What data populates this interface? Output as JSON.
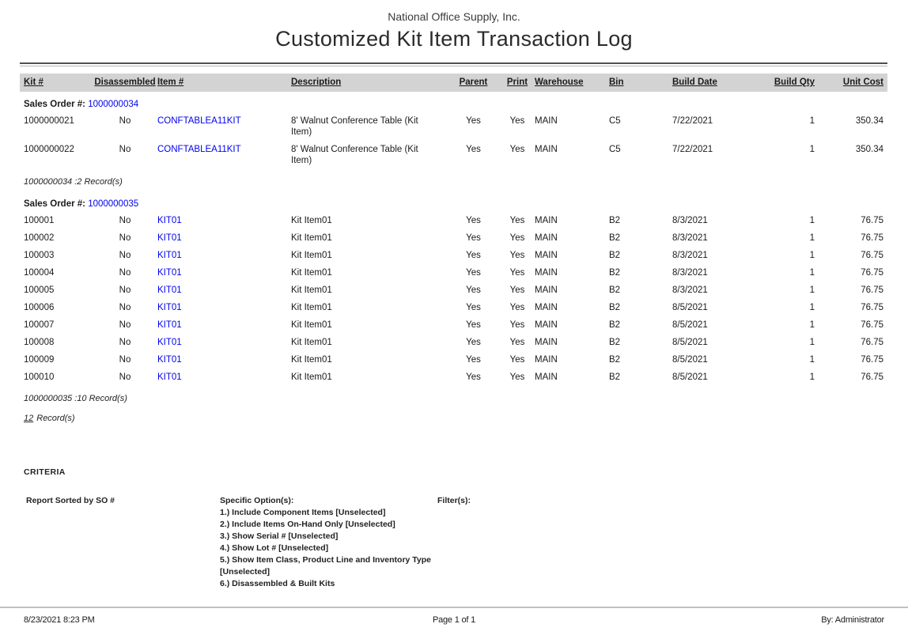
{
  "header": {
    "company": "National Office Supply, Inc.",
    "title": "Customized Kit Item Transaction Log"
  },
  "table": {
    "columns": [
      "Kit #",
      "Disassembled",
      "Item #",
      "Description",
      "Parent",
      "Print",
      "Warehouse",
      "Bin",
      "Build Date",
      "Build Qty",
      "Unit Cost"
    ],
    "groups": [
      {
        "sales_order_label": "Sales Order #:",
        "sales_order_number": "1000000034",
        "rows": [
          {
            "kit": "1000000021",
            "disassembled": "No",
            "item": "CONFTABLEA11KIT",
            "description": "8' Walnut Conference Table (Kit Item)",
            "parent": "Yes",
            "print": "Yes",
            "warehouse": "MAIN",
            "bin": "C5",
            "build_date": "7/22/2021",
            "build_qty": "1",
            "unit_cost": "350.34"
          },
          {
            "kit": "1000000022",
            "disassembled": "No",
            "item": "CONFTABLEA11KIT",
            "description": "8' Walnut Conference Table (Kit Item)",
            "parent": "Yes",
            "print": "Yes",
            "warehouse": "MAIN",
            "bin": "C5",
            "build_date": "7/22/2021",
            "build_qty": "1",
            "unit_cost": "350.34"
          }
        ],
        "summary": "1000000034 :2 Record(s)"
      },
      {
        "sales_order_label": "Sales Order #:",
        "sales_order_number": "1000000035",
        "rows": [
          {
            "kit": "100001",
            "disassembled": "No",
            "item": "KIT01",
            "description": "Kit Item01",
            "parent": "Yes",
            "print": "Yes",
            "warehouse": "MAIN",
            "bin": "B2",
            "build_date": "8/3/2021",
            "build_qty": "1",
            "unit_cost": "76.75"
          },
          {
            "kit": "100002",
            "disassembled": "No",
            "item": "KIT01",
            "description": "Kit Item01",
            "parent": "Yes",
            "print": "Yes",
            "warehouse": "MAIN",
            "bin": "B2",
            "build_date": "8/3/2021",
            "build_qty": "1",
            "unit_cost": "76.75"
          },
          {
            "kit": "100003",
            "disassembled": "No",
            "item": "KIT01",
            "description": "Kit Item01",
            "parent": "Yes",
            "print": "Yes",
            "warehouse": "MAIN",
            "bin": "B2",
            "build_date": "8/3/2021",
            "build_qty": "1",
            "unit_cost": "76.75"
          },
          {
            "kit": "100004",
            "disassembled": "No",
            "item": "KIT01",
            "description": "Kit Item01",
            "parent": "Yes",
            "print": "Yes",
            "warehouse": "MAIN",
            "bin": "B2",
            "build_date": "8/3/2021",
            "build_qty": "1",
            "unit_cost": "76.75"
          },
          {
            "kit": "100005",
            "disassembled": "No",
            "item": "KIT01",
            "description": "Kit Item01",
            "parent": "Yes",
            "print": "Yes",
            "warehouse": "MAIN",
            "bin": "B2",
            "build_date": "8/3/2021",
            "build_qty": "1",
            "unit_cost": "76.75"
          },
          {
            "kit": "100006",
            "disassembled": "No",
            "item": "KIT01",
            "description": "Kit Item01",
            "parent": "Yes",
            "print": "Yes",
            "warehouse": "MAIN",
            "bin": "B2",
            "build_date": "8/5/2021",
            "build_qty": "1",
            "unit_cost": "76.75"
          },
          {
            "kit": "100007",
            "disassembled": "No",
            "item": "KIT01",
            "description": "Kit Item01",
            "parent": "Yes",
            "print": "Yes",
            "warehouse": "MAIN",
            "bin": "B2",
            "build_date": "8/5/2021",
            "build_qty": "1",
            "unit_cost": "76.75"
          },
          {
            "kit": "100008",
            "disassembled": "No",
            "item": "KIT01",
            "description": "Kit Item01",
            "parent": "Yes",
            "print": "Yes",
            "warehouse": "MAIN",
            "bin": "B2",
            "build_date": "8/5/2021",
            "build_qty": "1",
            "unit_cost": "76.75"
          },
          {
            "kit": "100009",
            "disassembled": "No",
            "item": "KIT01",
            "description": "Kit Item01",
            "parent": "Yes",
            "print": "Yes",
            "warehouse": "MAIN",
            "bin": "B2",
            "build_date": "8/5/2021",
            "build_qty": "1",
            "unit_cost": "76.75"
          },
          {
            "kit": "100010",
            "disassembled": "No",
            "item": "KIT01",
            "description": "Kit Item01",
            "parent": "Yes",
            "print": "Yes",
            "warehouse": "MAIN",
            "bin": "B2",
            "build_date": "8/5/2021",
            "build_qty": "1",
            "unit_cost": "76.75"
          }
        ],
        "summary": "1000000035 :10 Record(s)"
      }
    ],
    "total_count": "12",
    "total_label": "Record(s)"
  },
  "criteria": {
    "heading": "CRITERIA",
    "sort": "Report Sorted by SO #",
    "options_label": "Specific Option(s):",
    "options": [
      "1.) Include Component Items [Unselected]",
      "2.) Include Items On-Hand Only [Unselected]",
      "3.) Show Serial # [Unselected]",
      "4.) Show Lot # [Unselected]",
      "5.) Show Item Class, Product Line and Inventory Type [Unselected]",
      "6.) Disassembled & Built Kits"
    ],
    "filters_label": "Filter(s):"
  },
  "footer": {
    "datetime": "8/23/2021 8:23 PM",
    "page": "Page 1 of 1",
    "by": "By: Administrator"
  },
  "colors": {
    "link": "#0000ee",
    "header_band": "#d3d3d3"
  }
}
